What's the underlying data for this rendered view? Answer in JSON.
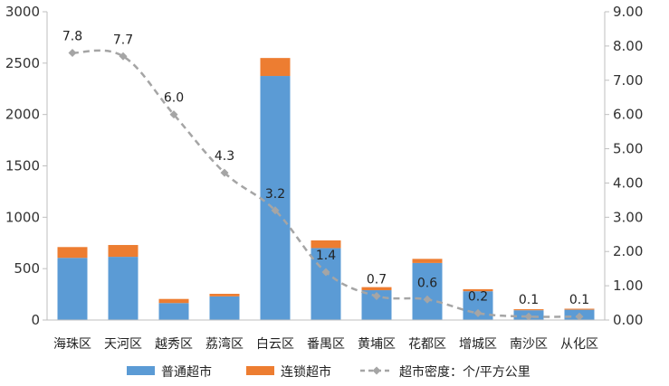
{
  "chart_data": {
    "type": "bar",
    "categories": [
      "海珠区",
      "天河区",
      "越秀区",
      "荔湾区",
      "白云区",
      "番禺区",
      "黄埔区",
      "花都区",
      "增城区",
      "南沙区",
      "从化区"
    ],
    "series": [
      {
        "name": "普通超市",
        "kind": "bar",
        "axis": "left",
        "color": "#5B9BD5",
        "values": [
          605,
          615,
          165,
          230,
          2375,
          700,
          290,
          555,
          280,
          95,
          100
        ]
      },
      {
        "name": "连锁超市",
        "kind": "bar",
        "axis": "left",
        "color": "#ED7D31",
        "values": [
          105,
          115,
          40,
          25,
          175,
          75,
          30,
          40,
          20,
          10,
          10
        ]
      },
      {
        "name": "超市密度：个/平方公里",
        "kind": "line",
        "axis": "right",
        "color": "#A5A5A5",
        "values": [
          7.8,
          7.7,
          6.0,
          4.3,
          3.2,
          1.4,
          0.7,
          0.6,
          0.2,
          0.1,
          0.1
        ],
        "labels": [
          "7.8",
          "7.7",
          "6.0",
          "4.3",
          "3.2",
          "1.4",
          "0.7",
          "0.6",
          "0.2",
          "0.1",
          "0.1"
        ]
      }
    ],
    "y_left": {
      "min": 0,
      "max": 3000,
      "ticks": [
        "0",
        "500",
        "1000",
        "1500",
        "2000",
        "2500",
        "3000"
      ]
    },
    "y_right": {
      "min": 0,
      "max": 9,
      "ticks": [
        "0.00",
        "1.00",
        "2.00",
        "3.00",
        "4.00",
        "5.00",
        "6.00",
        "7.00",
        "8.00",
        "9.00"
      ]
    },
    "stacked": true,
    "grid": false,
    "legend_position": "bottom",
    "title": ""
  }
}
